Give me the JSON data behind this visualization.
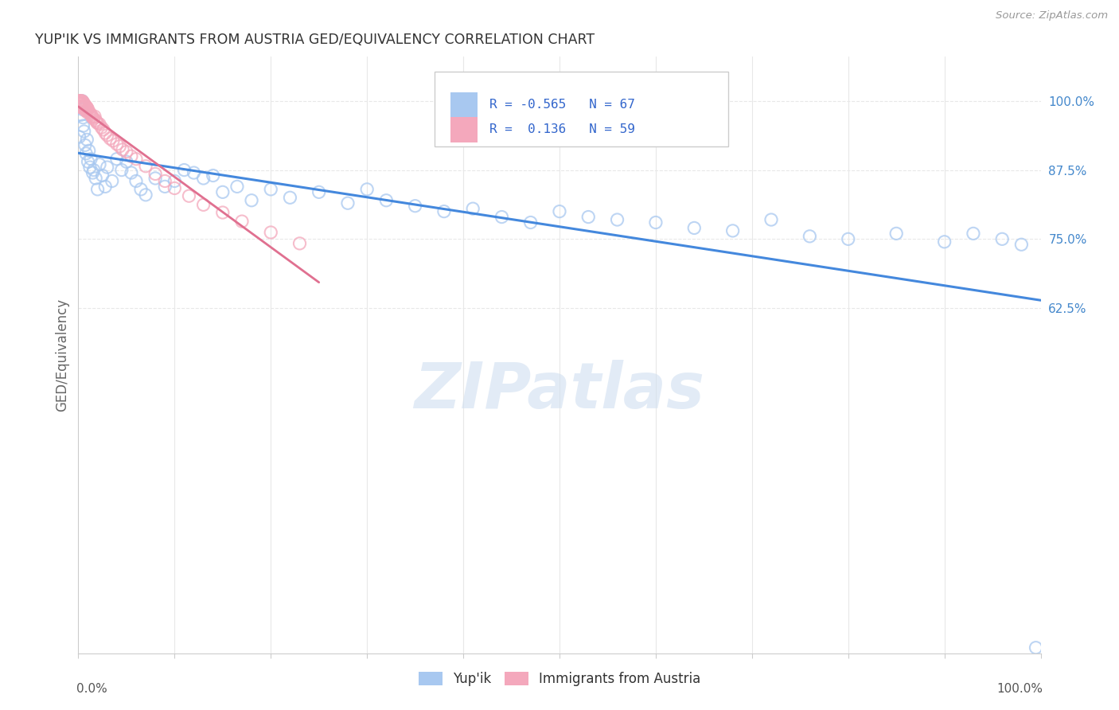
{
  "title": "YUP'IK VS IMMIGRANTS FROM AUSTRIA GED/EQUIVALENCY CORRELATION CHART",
  "source": "Source: ZipAtlas.com",
  "ylabel": "GED/Equivalency",
  "yticks": [
    0.625,
    0.75,
    0.875,
    1.0
  ],
  "ytick_labels": [
    "62.5%",
    "75.0%",
    "87.5%",
    "100.0%"
  ],
  "legend_label1": "Yup'ik",
  "legend_label2": "Immigrants from Austria",
  "color_blue": "#a8c8f0",
  "color_pink": "#f4a8bc",
  "color_blue_line": "#4488dd",
  "color_pink_line": "#e07090",
  "color_watermark": "#d0dff0",
  "background_color": "#ffffff",
  "grid_color": "#e8e8e8",
  "title_color": "#333333",
  "right_tick_color": "#4488cc",
  "xlim": [
    0.0,
    1.0
  ],
  "ylim": [
    0.0,
    1.08
  ],
  "yup_ik_x": [
    0.001,
    0.002,
    0.003,
    0.004,
    0.004,
    0.005,
    0.005,
    0.006,
    0.007,
    0.008,
    0.009,
    0.01,
    0.011,
    0.012,
    0.013,
    0.015,
    0.016,
    0.018,
    0.02,
    0.022,
    0.025,
    0.028,
    0.03,
    0.035,
    0.04,
    0.045,
    0.05,
    0.055,
    0.06,
    0.065,
    0.07,
    0.08,
    0.09,
    0.1,
    0.11,
    0.12,
    0.13,
    0.14,
    0.15,
    0.165,
    0.18,
    0.2,
    0.22,
    0.25,
    0.28,
    0.3,
    0.32,
    0.35,
    0.38,
    0.41,
    0.44,
    0.47,
    0.5,
    0.53,
    0.56,
    0.6,
    0.64,
    0.68,
    0.72,
    0.76,
    0.8,
    0.85,
    0.9,
    0.93,
    0.96,
    0.98,
    0.995
  ],
  "yup_ik_y": [
    0.935,
    0.995,
    0.975,
    1.0,
    0.985,
    0.955,
    0.97,
    0.945,
    0.92,
    0.905,
    0.93,
    0.89,
    0.91,
    0.88,
    0.895,
    0.87,
    0.875,
    0.86,
    0.84,
    0.885,
    0.865,
    0.845,
    0.88,
    0.855,
    0.895,
    0.875,
    0.89,
    0.87,
    0.855,
    0.84,
    0.83,
    0.86,
    0.845,
    0.855,
    0.875,
    0.87,
    0.86,
    0.865,
    0.835,
    0.845,
    0.82,
    0.84,
    0.825,
    0.835,
    0.815,
    0.84,
    0.82,
    0.81,
    0.8,
    0.805,
    0.79,
    0.78,
    0.8,
    0.79,
    0.785,
    0.78,
    0.77,
    0.765,
    0.785,
    0.755,
    0.75,
    0.76,
    0.745,
    0.76,
    0.75,
    0.74,
    0.01
  ],
  "austria_x": [
    0.0005,
    0.001,
    0.001,
    0.001,
    0.002,
    0.002,
    0.002,
    0.003,
    0.003,
    0.003,
    0.003,
    0.004,
    0.004,
    0.004,
    0.005,
    0.005,
    0.005,
    0.006,
    0.006,
    0.007,
    0.007,
    0.008,
    0.008,
    0.009,
    0.009,
    0.01,
    0.011,
    0.012,
    0.013,
    0.014,
    0.015,
    0.016,
    0.017,
    0.018,
    0.019,
    0.02,
    0.022,
    0.024,
    0.026,
    0.028,
    0.03,
    0.033,
    0.036,
    0.04,
    0.043,
    0.046,
    0.05,
    0.055,
    0.06,
    0.07,
    0.08,
    0.09,
    0.1,
    0.115,
    0.13,
    0.15,
    0.17,
    0.2,
    0.23
  ],
  "austria_y": [
    1.0,
    1.0,
    0.995,
    0.99,
    1.0,
    0.995,
    0.99,
    1.0,
    0.998,
    0.995,
    0.988,
    1.0,
    0.995,
    0.99,
    0.998,
    0.992,
    0.988,
    0.995,
    0.988,
    0.992,
    0.985,
    0.99,
    0.982,
    0.988,
    0.98,
    0.985,
    0.98,
    0.978,
    0.975,
    0.972,
    0.97,
    0.968,
    0.972,
    0.965,
    0.962,
    0.96,
    0.958,
    0.952,
    0.948,
    0.942,
    0.938,
    0.932,
    0.928,
    0.922,
    0.918,
    0.912,
    0.908,
    0.9,
    0.895,
    0.882,
    0.868,
    0.855,
    0.842,
    0.828,
    0.812,
    0.798,
    0.782,
    0.762,
    0.742
  ]
}
